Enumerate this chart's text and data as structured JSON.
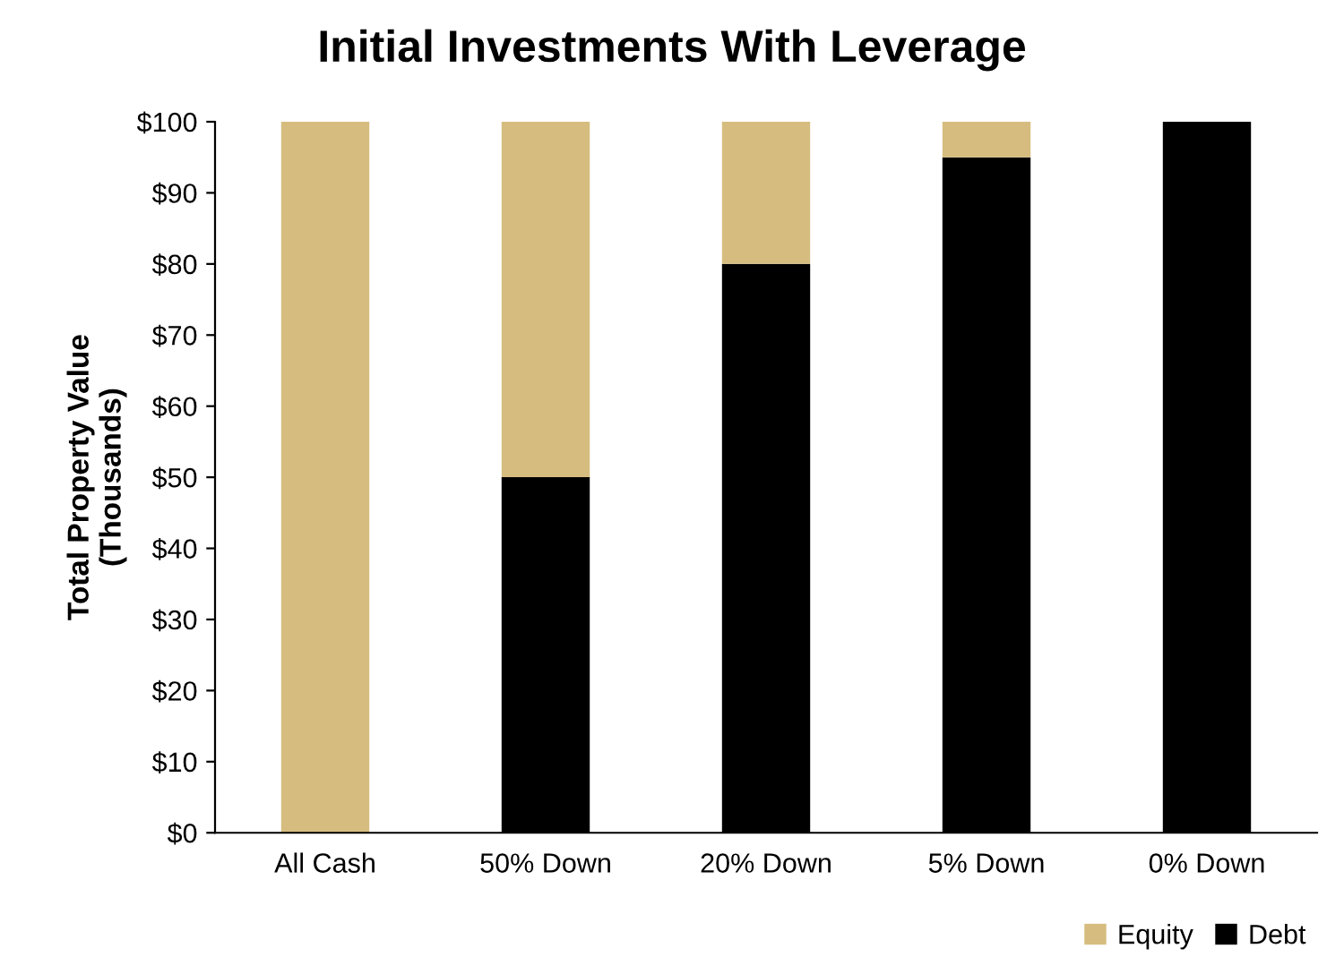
{
  "chart_data": {
    "type": "bar",
    "title": "Initial Investments With Leverage",
    "ylabel": "Total Property Value\n(Thousands)",
    "categories": [
      "All Cash",
      "50% Down",
      "20% Down",
      "5% Down",
      "0% Down"
    ],
    "stacked": true,
    "series": [
      {
        "name": "Debt",
        "color": "#000000",
        "values": [
          0,
          50,
          80,
          95,
          100
        ]
      },
      {
        "name": "Equity",
        "color": "#d6bd7f",
        "values": [
          100,
          50,
          20,
          5,
          0
        ]
      }
    ],
    "ylim": [
      0,
      100
    ],
    "yticks": [
      {
        "value": 0,
        "label": "$0"
      },
      {
        "value": 10,
        "label": "$10"
      },
      {
        "value": 20,
        "label": "$20"
      },
      {
        "value": 30,
        "label": "$30"
      },
      {
        "value": 40,
        "label": "$40"
      },
      {
        "value": 50,
        "label": "$50"
      },
      {
        "value": 60,
        "label": "$60"
      },
      {
        "value": 70,
        "label": "$70"
      },
      {
        "value": 80,
        "label": "$80"
      },
      {
        "value": 90,
        "label": "$90"
      },
      {
        "value": 100,
        "label": "$100"
      }
    ],
    "grid": false,
    "legend": "bottom right"
  }
}
